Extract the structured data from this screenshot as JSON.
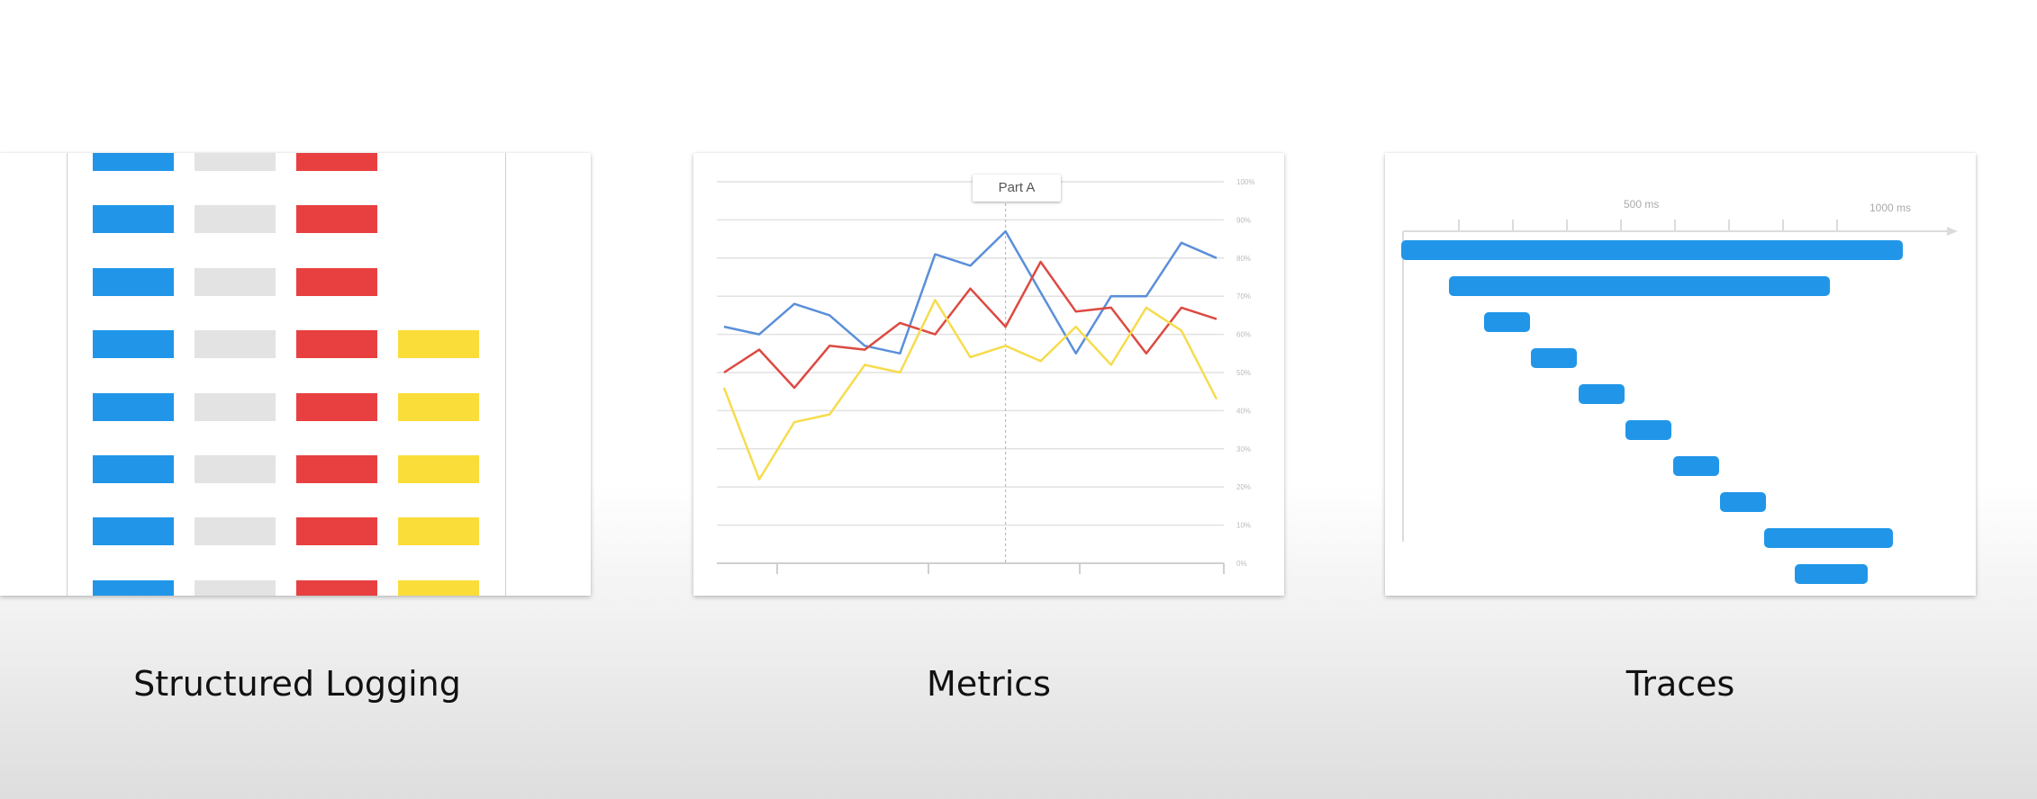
{
  "colors": {
    "blue": "#2196e8",
    "gray": "#e3e3e3",
    "red": "#e84040",
    "yellow": "#fbdd3a",
    "line_blue": "#5b8fd9",
    "line_red": "#dc4a42",
    "line_yellow": "#f6dc4e"
  },
  "panels": {
    "logging": {
      "caption": "Structured Logging",
      "rows": [
        {
          "cells": [
            "blue",
            "gray",
            "red"
          ]
        },
        {
          "cells": [
            "blue",
            "gray",
            "red"
          ]
        },
        {
          "cells": [
            "blue",
            "gray",
            "red"
          ]
        },
        {
          "cells": [
            "blue",
            "gray",
            "red",
            "yellow"
          ]
        },
        {
          "cells": [
            "blue",
            "gray",
            "red",
            "yellow"
          ]
        },
        {
          "cells": [
            "blue",
            "gray",
            "red",
            "yellow"
          ]
        },
        {
          "cells": [
            "blue",
            "gray",
            "red",
            "yellow"
          ]
        },
        {
          "cells": [
            "blue",
            "gray",
            "red",
            "yellow"
          ]
        }
      ]
    },
    "metrics": {
      "caption": "Metrics",
      "chart_data": {
        "type": "line",
        "tooltip": "Part A",
        "y_ticks": [
          "100%",
          "90%",
          "80%",
          "70%",
          "60%",
          "50%",
          "40%",
          "30%",
          "20%",
          "10%",
          "0%"
        ],
        "ylim": [
          0,
          100
        ],
        "grid": true,
        "highlight_x": 8,
        "x": [
          0,
          1,
          2,
          3,
          4,
          5,
          6,
          7,
          8,
          9,
          10,
          11,
          12,
          13,
          14
        ],
        "series": [
          {
            "color": "line_blue",
            "values": [
              62,
              60,
              68,
              65,
              57,
              55,
              81,
              78,
              87,
              71,
              55,
              70,
              70,
              84,
              80
            ]
          },
          {
            "color": "line_red",
            "values": [
              50,
              56,
              46,
              57,
              56,
              63,
              60,
              72,
              62,
              79,
              66,
              67,
              55,
              67,
              64
            ]
          },
          {
            "color": "line_yellow",
            "values": [
              46,
              22,
              37,
              39,
              52,
              50,
              69,
              54,
              57,
              53,
              62,
              52,
              67,
              61,
              43
            ]
          }
        ]
      }
    },
    "traces": {
      "caption": "Traces",
      "axis_labels": [
        "500 ms",
        "1000 ms"
      ],
      "spans": [
        {
          "start": 0.0,
          "end": 0.995
        },
        {
          "start": 0.095,
          "end": 0.85
        },
        {
          "start": 0.165,
          "end": 0.255
        },
        {
          "start": 0.258,
          "end": 0.348
        },
        {
          "start": 0.352,
          "end": 0.442
        },
        {
          "start": 0.445,
          "end": 0.535
        },
        {
          "start": 0.54,
          "end": 0.63
        },
        {
          "start": 0.633,
          "end": 0.723
        },
        {
          "start": 0.72,
          "end": 0.975
        },
        {
          "start": 0.78,
          "end": 0.925
        }
      ]
    }
  }
}
